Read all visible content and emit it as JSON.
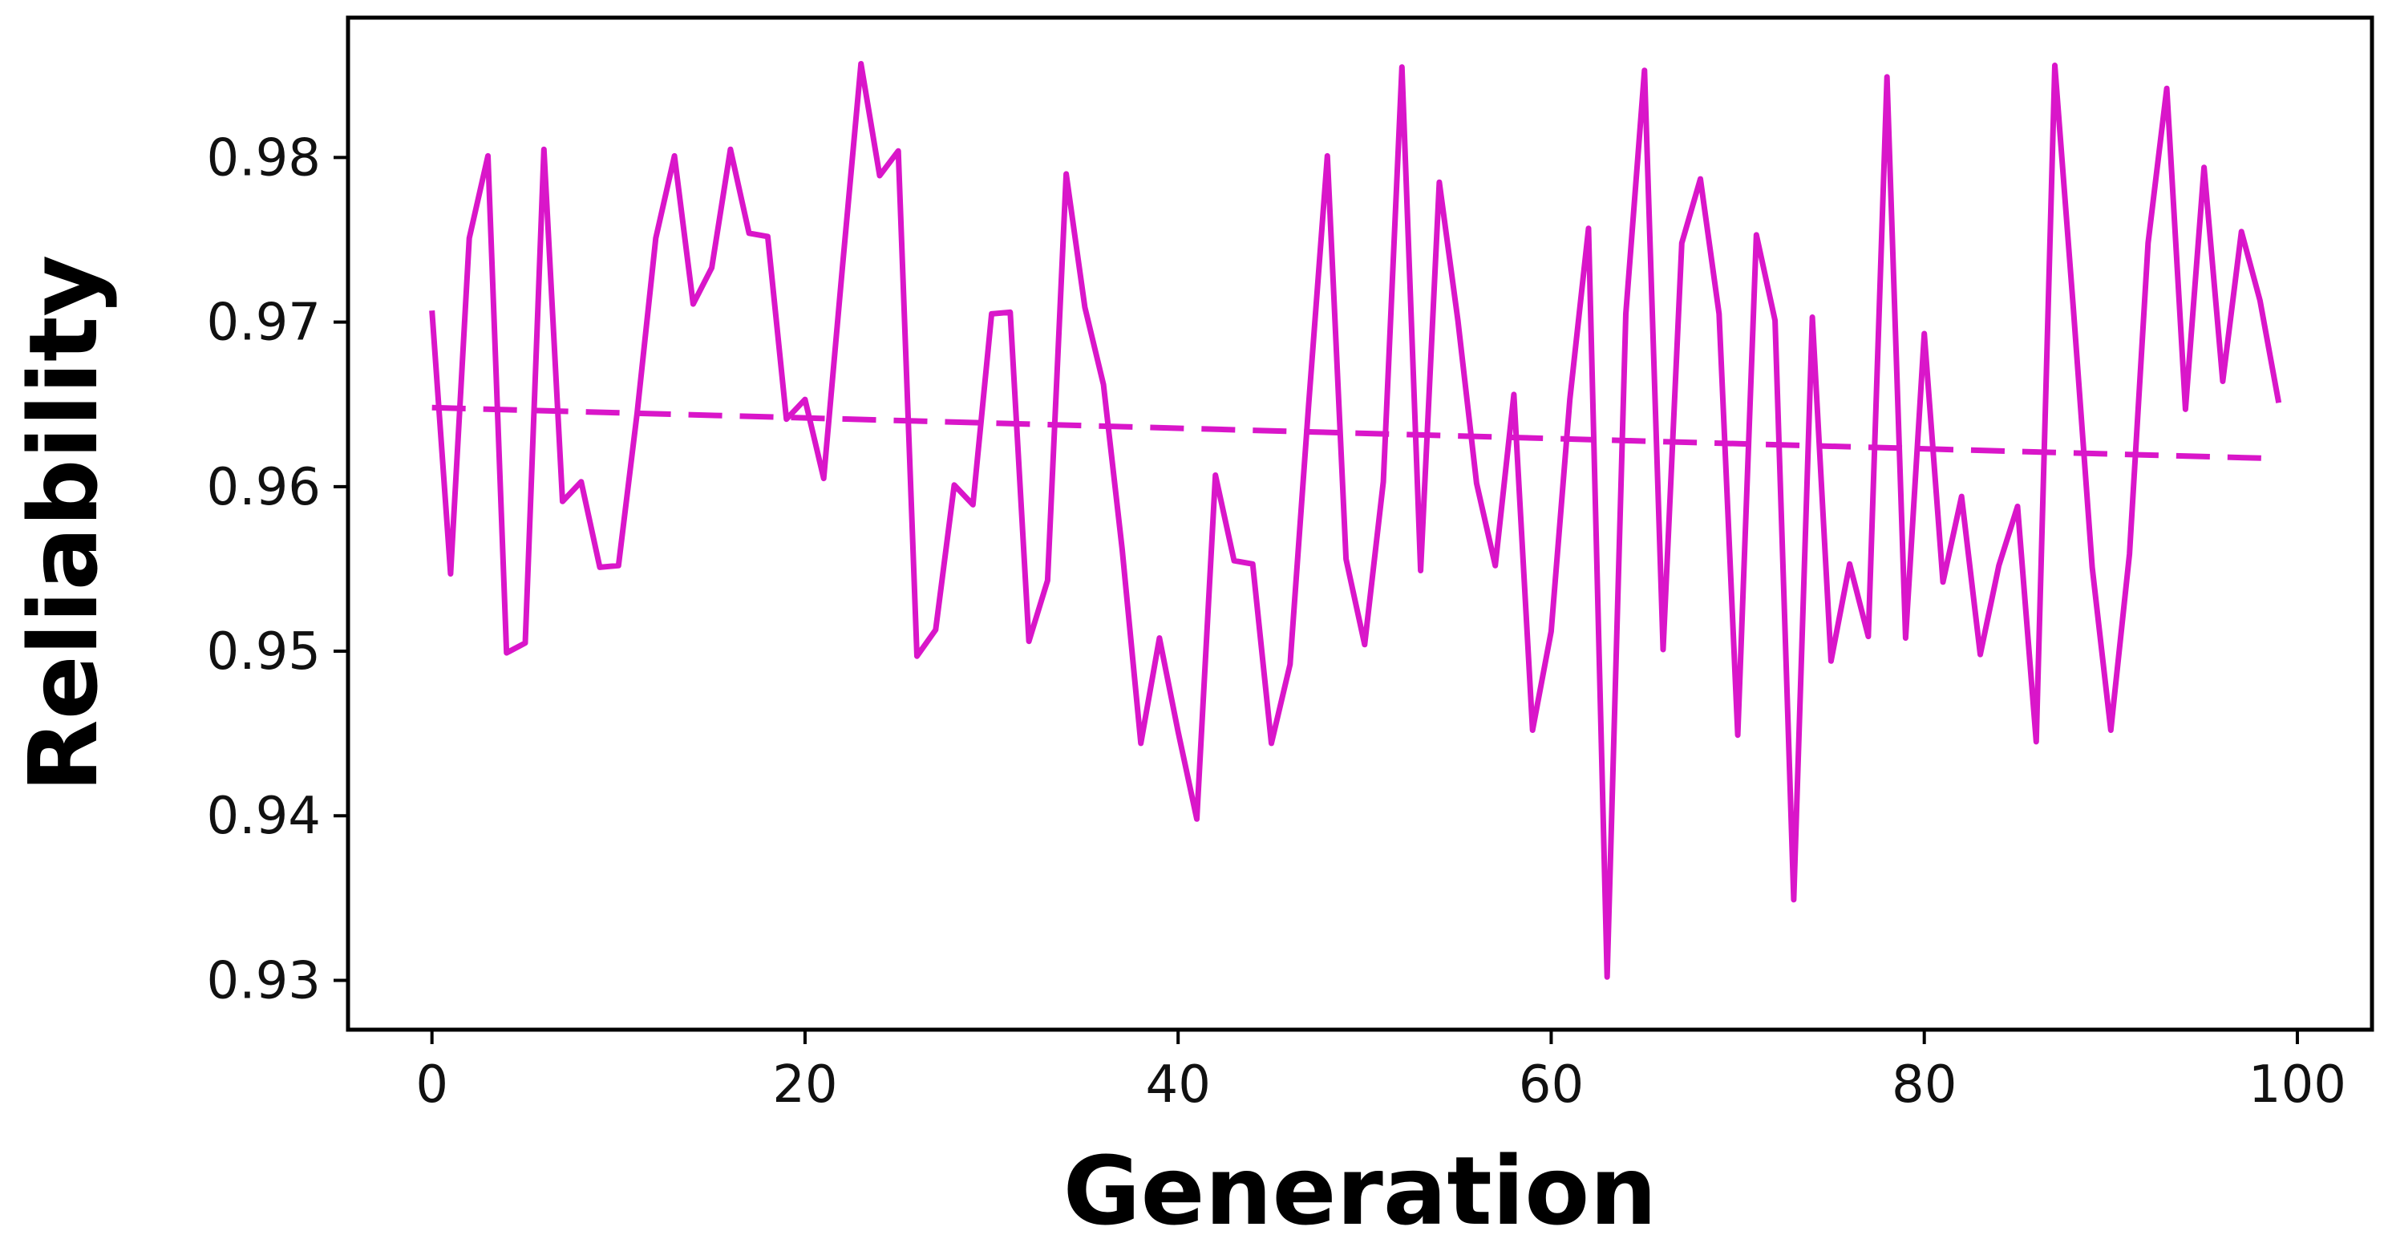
{
  "chart_data": {
    "type": "line",
    "title": "",
    "xlabel": "Generation",
    "ylabel": "Reliability",
    "xlim": [
      -4.5,
      104
    ],
    "ylim": [
      0.927,
      0.9885
    ],
    "xticks": [
      0,
      20,
      40,
      60,
      80,
      100
    ],
    "yticks": [
      0.93,
      0.94,
      0.95,
      0.96,
      0.97,
      0.98
    ],
    "grid": false,
    "legend": "none",
    "colors": {
      "line": "#d916c9",
      "axis": "#000000"
    },
    "series": [
      {
        "style": "solid",
        "x": [
          0,
          1,
          2,
          3,
          4,
          5,
          6,
          7,
          8,
          9,
          10,
          11,
          12,
          13,
          14,
          15,
          16,
          17,
          18,
          19,
          20,
          21,
          22,
          23,
          24,
          25,
          26,
          27,
          28,
          29,
          30,
          31,
          32,
          33,
          34,
          35,
          36,
          37,
          38,
          39,
          40,
          41,
          42,
          43,
          44,
          45,
          46,
          47,
          48,
          49,
          50,
          51,
          52,
          53,
          54,
          55,
          56,
          57,
          58,
          59,
          60,
          61,
          62,
          63,
          64,
          65,
          66,
          67,
          68,
          69,
          70,
          71,
          72,
          73,
          74,
          75,
          76,
          77,
          78,
          79,
          80,
          81,
          82,
          83,
          84,
          85,
          86,
          87,
          88,
          89,
          90,
          91,
          92,
          93,
          94,
          95,
          96,
          97,
          98,
          99
        ],
        "y": [
          0.9707,
          0.9547,
          0.9751,
          0.9801,
          0.9499,
          0.9505,
          0.9805,
          0.9591,
          0.9603,
          0.9551,
          0.9552,
          0.9645,
          0.9751,
          0.9801,
          0.9711,
          0.9733,
          0.9805,
          0.9754,
          0.9752,
          0.9641,
          0.9653,
          0.9605,
          0.9733,
          0.9857,
          0.9789,
          0.9804,
          0.9497,
          0.9513,
          0.9601,
          0.9589,
          0.9705,
          0.9706,
          0.9506,
          0.9543,
          0.979,
          0.9709,
          0.9662,
          0.9562,
          0.9444,
          0.9508,
          0.9451,
          0.9398,
          0.9607,
          0.9555,
          0.9553,
          0.9444,
          0.9492,
          0.965,
          0.9801,
          0.9556,
          0.9504,
          0.9603,
          0.9855,
          0.9549,
          0.9785,
          0.9701,
          0.9602,
          0.9552,
          0.9656,
          0.9452,
          0.9512,
          0.9653,
          0.9757,
          0.9302,
          0.9705,
          0.9853,
          0.9501,
          0.9748,
          0.9787,
          0.9705,
          0.9449,
          0.9753,
          0.9701,
          0.9349,
          0.9703,
          0.9494,
          0.9553,
          0.9509,
          0.9849,
          0.9508,
          0.9693,
          0.9542,
          0.9594,
          0.9498,
          0.9552,
          0.9588,
          0.9445,
          0.9856,
          0.9707,
          0.9551,
          0.9452,
          0.9559,
          0.9748,
          0.9842,
          0.9647,
          0.9794,
          0.9664,
          0.9755,
          0.9713,
          0.9651
        ]
      },
      {
        "style": "dashed",
        "x": [
          0,
          99
        ],
        "y": [
          0.9648,
          0.9617
        ]
      }
    ]
  }
}
